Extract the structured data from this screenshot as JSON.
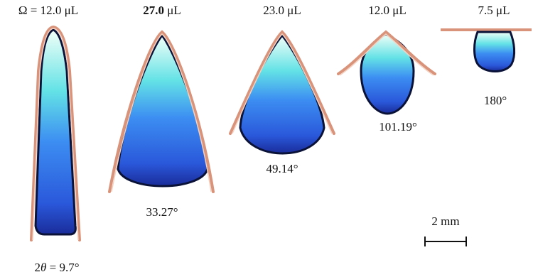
{
  "drops": [
    {
      "prefix": "Ω =",
      "volume": "12.0",
      "unit": "μL",
      "angle_prefix": "2",
      "angle_symbol": "θ",
      "angle": "= 9.7°"
    },
    {
      "volume": "27.0",
      "unit": "μL",
      "angle": "33.27°"
    },
    {
      "volume": "23.0",
      "unit": "μL",
      "angle": "49.14°"
    },
    {
      "volume": "12.0",
      "unit": "μL",
      "angle": "101.19°"
    },
    {
      "volume": "7.5",
      "unit": "μL",
      "angle": "180°"
    }
  ],
  "scale_bar": "2 mm"
}
